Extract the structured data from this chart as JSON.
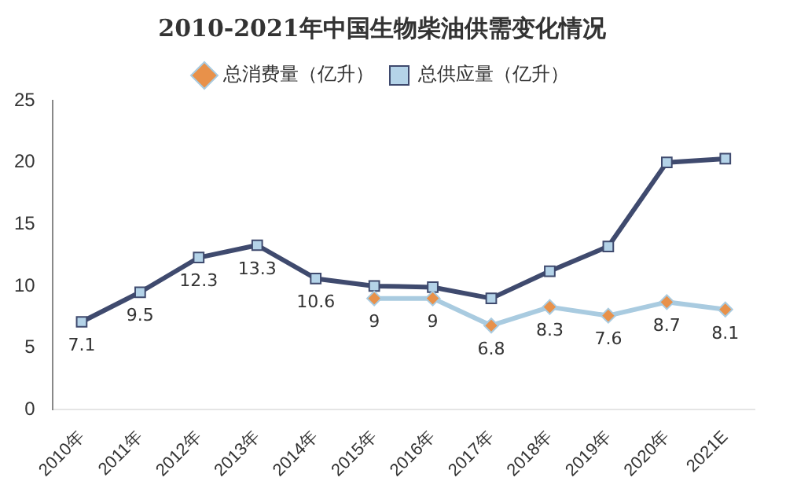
{
  "chart_data": {
    "type": "line",
    "title": "2010-2021年中国生物柴油供需变化情况",
    "categories": [
      "2010年",
      "2011年",
      "2012年",
      "2013年",
      "2014年",
      "2015年",
      "2016年",
      "2017年",
      "2018年",
      "2019年",
      "2020年",
      "2021E"
    ],
    "series": [
      {
        "name": "总消费量（亿升）",
        "color": "#a9cbe0",
        "marker": "diamond",
        "values": [
          null,
          null,
          null,
          null,
          null,
          9,
          9,
          6.8,
          8.3,
          7.6,
          8.7,
          8.1
        ],
        "value_labels": [
          null,
          null,
          null,
          null,
          null,
          "9",
          "9",
          "6.8",
          "8.3",
          "7.6",
          "8.7",
          "8.1"
        ]
      },
      {
        "name": "总供应量（亿升）",
        "color": "#3f4a6e",
        "marker": "square",
        "values": [
          7.1,
          9.5,
          12.3,
          13.3,
          10.6,
          10,
          9.9,
          9,
          11.2,
          13.2,
          20,
          20.3
        ],
        "value_labels": [
          "7.1",
          "9.5",
          "12.3",
          "13.3",
          "10.6",
          null,
          null,
          null,
          null,
          null,
          null,
          null
        ]
      }
    ],
    "ylim": [
      0,
      25
    ],
    "yticks": [
      0,
      5,
      10,
      15,
      20,
      25
    ],
    "grid": false,
    "legend": "top",
    "line_style": "solid"
  }
}
